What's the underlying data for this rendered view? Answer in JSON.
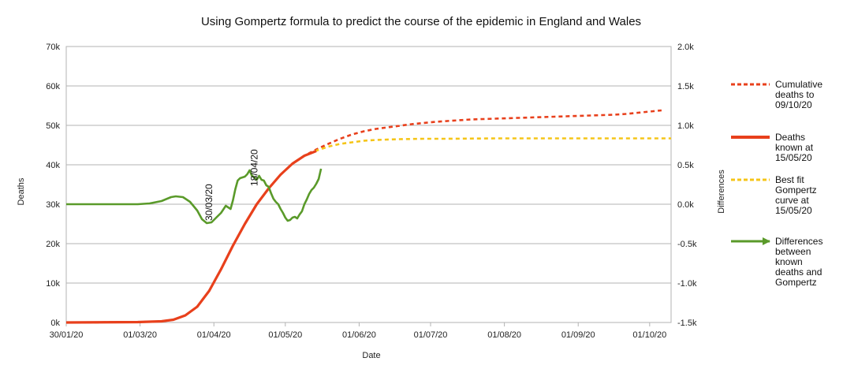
{
  "chart_data": {
    "type": "line",
    "title": "Using Gompertz formula to predict the course of the epidemic in England and Wales",
    "xlabel": "Date",
    "ylabel_left": "Deaths",
    "ylabel_right": "Differences",
    "x_range_days": [
      0,
      254
    ],
    "x_ticks": [
      {
        "label": "30/01/20",
        "day": 0
      },
      {
        "label": "01/03/20",
        "day": 31
      },
      {
        "label": "01/04/20",
        "day": 62
      },
      {
        "label": "01/05/20",
        "day": 92
      },
      {
        "label": "01/06/20",
        "day": 123
      },
      {
        "label": "01/07/20",
        "day": 153
      },
      {
        "label": "01/08/20",
        "day": 184
      },
      {
        "label": "01/09/20",
        "day": 215
      },
      {
        "label": "01/10/20",
        "day": 245
      }
    ],
    "y_left": {
      "min": 0,
      "max": 70000,
      "ticks": [
        "0k",
        "10k",
        "20k",
        "30k",
        "40k",
        "50k",
        "60k",
        "70k"
      ]
    },
    "y_right": {
      "min": -1500,
      "max": 2000,
      "ticks": [
        "-1.5k",
        "-1.0k",
        "-0.5k",
        "0.0k",
        "0.5k",
        "1.0k",
        "1.5k",
        "2.0k"
      ]
    },
    "grid": "horizontal",
    "legend_position": "right",
    "annotations": [
      {
        "text": "30/03/20",
        "day": 60
      },
      {
        "text": "18/04/20",
        "day": 79
      }
    ],
    "series": [
      {
        "name": "Cumulative deaths to 09/10/20",
        "axis": "left",
        "color": "#e8401c",
        "style": "dashed",
        "points": [
          [
            0,
            0
          ],
          [
            30,
            100
          ],
          [
            40,
            300
          ],
          [
            45,
            700
          ],
          [
            50,
            1800
          ],
          [
            55,
            4000
          ],
          [
            60,
            8000
          ],
          [
            65,
            13500
          ],
          [
            70,
            19500
          ],
          [
            75,
            25000
          ],
          [
            80,
            30000
          ],
          [
            85,
            34000
          ],
          [
            90,
            37500
          ],
          [
            95,
            40300
          ],
          [
            100,
            42300
          ],
          [
            105,
            43900
          ],
          [
            110,
            45300
          ],
          [
            115,
            46600
          ],
          [
            120,
            47700
          ],
          [
            125,
            48500
          ],
          [
            130,
            49100
          ],
          [
            135,
            49500
          ],
          [
            140,
            49900
          ],
          [
            145,
            50300
          ],
          [
            150,
            50600
          ],
          [
            155,
            50900
          ],
          [
            160,
            51100
          ],
          [
            165,
            51300
          ],
          [
            170,
            51500
          ],
          [
            175,
            51600
          ],
          [
            180,
            51700
          ],
          [
            185,
            51800
          ],
          [
            190,
            51900
          ],
          [
            195,
            52000
          ],
          [
            200,
            52100
          ],
          [
            205,
            52200
          ],
          [
            210,
            52300
          ],
          [
            215,
            52400
          ],
          [
            220,
            52500
          ],
          [
            225,
            52600
          ],
          [
            230,
            52700
          ],
          [
            235,
            52900
          ],
          [
            240,
            53200
          ],
          [
            245,
            53500
          ],
          [
            250,
            53800
          ]
        ]
      },
      {
        "name": "Deaths known at 15/05/20",
        "axis": "left",
        "color": "#e8401c",
        "style": "solid",
        "points": [
          [
            0,
            0
          ],
          [
            30,
            100
          ],
          [
            40,
            300
          ],
          [
            45,
            700
          ],
          [
            50,
            1800
          ],
          [
            55,
            4000
          ],
          [
            60,
            8000
          ],
          [
            65,
            13500
          ],
          [
            70,
            19500
          ],
          [
            75,
            25000
          ],
          [
            80,
            30000
          ],
          [
            85,
            34000
          ],
          [
            90,
            37500
          ],
          [
            95,
            40300
          ],
          [
            100,
            42300
          ],
          [
            105,
            43500
          ]
        ]
      },
      {
        "name": "Best fit Gompertz curve at 15/05/20",
        "axis": "left",
        "color": "#f5c518",
        "style": "dashed",
        "points": [
          [
            0,
            0
          ],
          [
            30,
            100
          ],
          [
            40,
            300
          ],
          [
            45,
            700
          ],
          [
            50,
            1800
          ],
          [
            55,
            4000
          ],
          [
            60,
            8000
          ],
          [
            65,
            13500
          ],
          [
            70,
            19500
          ],
          [
            75,
            25000
          ],
          [
            80,
            30000
          ],
          [
            85,
            34000
          ],
          [
            90,
            37500
          ],
          [
            95,
            40300
          ],
          [
            100,
            42300
          ],
          [
            105,
            43600
          ],
          [
            110,
            44600
          ],
          [
            115,
            45300
          ],
          [
            120,
            45700
          ],
          [
            125,
            46100
          ],
          [
            130,
            46300
          ],
          [
            140,
            46500
          ],
          [
            150,
            46600
          ],
          [
            160,
            46600
          ],
          [
            180,
            46700
          ],
          [
            200,
            46700
          ],
          [
            230,
            46700
          ],
          [
            254,
            46700
          ]
        ]
      },
      {
        "name": "Differences between known deaths and Gompertz",
        "axis": "right",
        "color": "#5a9a2a",
        "style": "solid",
        "points": [
          [
            0,
            0
          ],
          [
            30,
            0
          ],
          [
            35,
            10
          ],
          [
            40,
            40
          ],
          [
            44,
            90
          ],
          [
            46,
            100
          ],
          [
            49,
            90
          ],
          [
            52,
            30
          ],
          [
            55,
            -80
          ],
          [
            57,
            -190
          ],
          [
            59,
            -240
          ],
          [
            61,
            -230
          ],
          [
            63,
            -170
          ],
          [
            65,
            -110
          ],
          [
            67,
            -20
          ],
          [
            69,
            -60
          ],
          [
            70,
            50
          ],
          [
            71,
            190
          ],
          [
            72,
            300
          ],
          [
            73,
            330
          ],
          [
            75,
            350
          ],
          [
            76,
            380
          ],
          [
            77,
            430
          ],
          [
            78,
            360
          ],
          [
            79,
            340
          ],
          [
            80,
            310
          ],
          [
            81,
            360
          ],
          [
            82,
            310
          ],
          [
            83,
            300
          ],
          [
            84,
            240
          ],
          [
            85,
            220
          ],
          [
            86,
            140
          ],
          [
            87,
            70
          ],
          [
            88,
            30
          ],
          [
            89,
            0
          ],
          [
            90,
            -60
          ],
          [
            91,
            -110
          ],
          [
            92,
            -170
          ],
          [
            93,
            -210
          ],
          [
            94,
            -200
          ],
          [
            95,
            -170
          ],
          [
            96,
            -160
          ],
          [
            97,
            -180
          ],
          [
            98,
            -130
          ],
          [
            99,
            -90
          ],
          [
            100,
            0
          ],
          [
            101,
            60
          ],
          [
            102,
            130
          ],
          [
            103,
            180
          ],
          [
            104,
            210
          ],
          [
            105,
            260
          ],
          [
            106,
            320
          ],
          [
            107,
            450
          ]
        ]
      }
    ]
  }
}
